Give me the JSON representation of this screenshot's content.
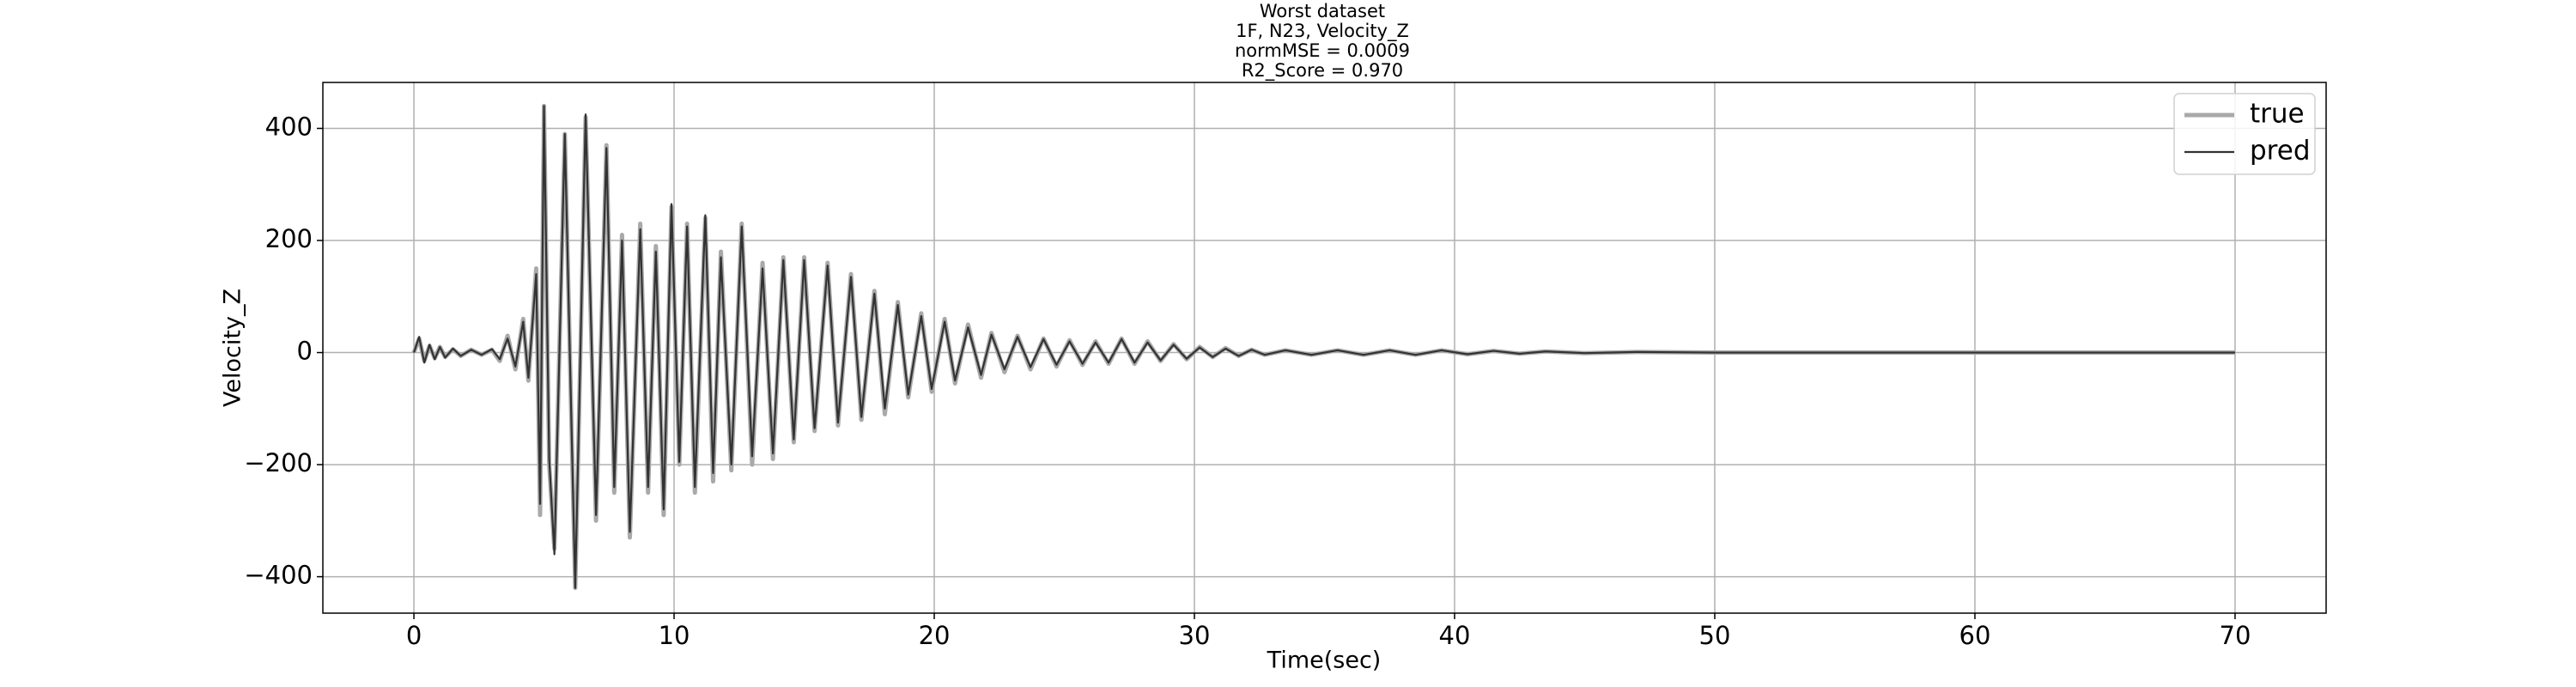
{
  "chart_data": {
    "type": "line",
    "title": [
      "Worst dataset",
      "1F, N23, Velocity_Z",
      "normMSE = 0.0009",
      "R2_Score = 0.970"
    ],
    "xlabel": "Time(sec)",
    "ylabel": "Velocity_Z",
    "x": [
      0,
      0.2,
      0.4,
      0.6,
      0.8,
      1.0,
      1.2,
      1.5,
      1.8,
      2.2,
      2.6,
      3.0,
      3.3,
      3.6,
      3.9,
      4.2,
      4.4,
      4.7,
      4.85,
      5.0,
      5.2,
      5.4,
      5.8,
      6.2,
      6.6,
      7.0,
      7.4,
      7.7,
      8.0,
      8.3,
      8.7,
      9.0,
      9.3,
      9.6,
      9.9,
      10.2,
      10.5,
      10.8,
      11.2,
      11.5,
      11.8,
      12.2,
      12.6,
      13.0,
      13.4,
      13.8,
      14.2,
      14.6,
      15.0,
      15.4,
      15.9,
      16.3,
      16.8,
      17.2,
      17.7,
      18.1,
      18.6,
      19.0,
      19.5,
      19.9,
      20.4,
      20.8,
      21.3,
      21.8,
      22.2,
      22.7,
      23.2,
      23.7,
      24.2,
      24.7,
      25.2,
      25.7,
      26.2,
      26.7,
      27.2,
      27.7,
      28.2,
      28.7,
      29.2,
      29.7,
      30.2,
      30.7,
      31.2,
      31.7,
      32.2,
      32.7,
      33.5,
      34.5,
      35.5,
      36.5,
      37.5,
      38.5,
      39.5,
      40.5,
      41.5,
      42.5,
      43.5,
      45,
      47,
      50,
      60,
      70
    ],
    "series": [
      {
        "name": "true",
        "color": "#a9a9a9",
        "width": 5,
        "values": [
          0,
          25,
          -15,
          12,
          -10,
          10,
          -8,
          6,
          -6,
          5,
          -4,
          5,
          -15,
          30,
          -30,
          60,
          -50,
          150,
          -290,
          440,
          -200,
          -350,
          390,
          -420,
          420,
          -300,
          370,
          -250,
          210,
          -330,
          230,
          -250,
          190,
          -290,
          260,
          -200,
          230,
          -250,
          240,
          -230,
          180,
          -210,
          230,
          -200,
          160,
          -190,
          170,
          -160,
          170,
          -140,
          160,
          -130,
          140,
          -120,
          110,
          -110,
          90,
          -80,
          70,
          -70,
          60,
          -55,
          50,
          -45,
          35,
          -35,
          30,
          -30,
          25,
          -25,
          22,
          -22,
          20,
          -20,
          25,
          -20,
          20,
          -15,
          15,
          -12,
          10,
          -8,
          8,
          -6,
          5,
          -4,
          4,
          -4,
          4,
          -4,
          4,
          -4,
          4,
          -3,
          3,
          -2,
          2,
          -1,
          1,
          0,
          0,
          0
        ]
      },
      {
        "name": "pred",
        "color": "#333333",
        "width": 2.2,
        "values": [
          0,
          28,
          -18,
          14,
          -12,
          10,
          -9,
          7,
          -6,
          5,
          -4,
          6,
          -12,
          25,
          -25,
          55,
          -45,
          140,
          -270,
          440,
          -190,
          -360,
          390,
          -420,
          425,
          -290,
          365,
          -240,
          200,
          -320,
          220,
          -240,
          180,
          -280,
          265,
          -195,
          225,
          -240,
          245,
          -215,
          170,
          -200,
          225,
          -185,
          150,
          -180,
          165,
          -155,
          165,
          -135,
          155,
          -125,
          135,
          -115,
          105,
          -100,
          85,
          -75,
          65,
          -65,
          55,
          -50,
          45,
          -40,
          32,
          -30,
          28,
          -26,
          24,
          -22,
          20,
          -20,
          18,
          -18,
          24,
          -18,
          18,
          -14,
          14,
          -11,
          9,
          -8,
          7,
          -6,
          5,
          -4,
          4,
          -4,
          4,
          -4,
          4,
          -4,
          4,
          -3,
          3,
          -2,
          2,
          -1,
          1,
          0,
          0,
          0
        ]
      }
    ],
    "xlim": [
      -3.5,
      73.5
    ],
    "ylim": [
      -465,
      482
    ],
    "xticks": [
      0,
      10,
      20,
      30,
      40,
      50,
      60,
      70
    ],
    "yticks": [
      {
        "value": -400,
        "label": "−400"
      },
      {
        "value": -200,
        "label": "−200"
      },
      0,
      200,
      400
    ],
    "grid": true,
    "legend": "upper right"
  }
}
